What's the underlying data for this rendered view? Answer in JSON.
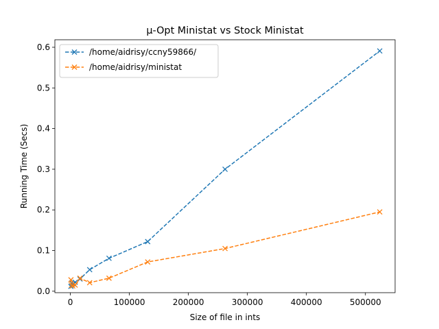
{
  "chart_data": {
    "type": "line",
    "title": "µ-Opt Ministat vs Stock Ministat",
    "xlabel": "Size of file in ints",
    "ylabel": "Running Time (Secs)",
    "xlim": [
      -26200,
      550288
    ],
    "ylim": [
      -0.0036,
      0.6185
    ],
    "x_ticks": [
      0,
      100000,
      200000,
      300000,
      400000,
      500000
    ],
    "x_tick_labels": [
      "0",
      "100000",
      "200000",
      "300000",
      "400000",
      "500000"
    ],
    "y_ticks": [
      0.0,
      0.1,
      0.2,
      0.3,
      0.4,
      0.5,
      0.6
    ],
    "y_tick_labels": [
      "0.0",
      "0.1",
      "0.2",
      "0.3",
      "0.4",
      "0.5",
      "0.6"
    ],
    "grid": false,
    "legend_position": "upper-left",
    "marker": "x",
    "line_style": "dashed",
    "series": [
      {
        "name": "/home/aidrisy/ccny59866/",
        "color": "#1f77b4",
        "x": [
          1024,
          2048,
          4096,
          8192,
          16384,
          32768,
          65536,
          131072,
          262144,
          524288
        ],
        "y": [
          0.012,
          0.02,
          0.018,
          0.022,
          0.03,
          0.053,
          0.081,
          0.122,
          0.3,
          0.591
        ]
      },
      {
        "name": "/home/aidrisy/ministat",
        "color": "#ff7f0e",
        "x": [
          1024,
          2048,
          4096,
          8192,
          16384,
          32768,
          65536,
          131072,
          262144,
          524288
        ],
        "y": [
          0.028,
          0.015,
          0.013,
          0.015,
          0.032,
          0.021,
          0.032,
          0.072,
          0.105,
          0.195
        ]
      }
    ]
  }
}
